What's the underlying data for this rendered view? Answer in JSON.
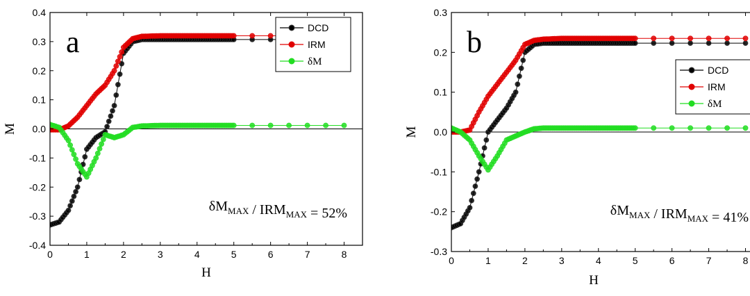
{
  "chart_data": [
    {
      "type": "scatter",
      "panel_label": "a",
      "xlabel": "H",
      "ylabel": "M",
      "xlim": [
        0,
        8.5
      ],
      "ylim": [
        -0.4,
        0.4
      ],
      "xticks": [
        "0",
        "1",
        "2",
        "3",
        "4",
        "5",
        "6",
        "7",
        "8"
      ],
      "yticks": [
        "-0.4",
        "-0.3",
        "-0.2",
        "-0.1",
        "0.0",
        "0.1",
        "0.2",
        "0.3",
        "0.4"
      ],
      "annotation": {
        "delta": "δM",
        "sub1": "MAX",
        "sep": " / IRM",
        "sub2": "MAX",
        "tail": " = 52%"
      },
      "legend_position": "top-right",
      "series": [
        {
          "name": "DCD",
          "color": "#000000",
          "x": [
            0,
            0.25,
            0.5,
            0.75,
            1.0,
            1.25,
            1.5,
            1.75,
            2.0,
            2.25,
            2.5,
            3.0,
            4.0,
            5.0,
            5.5,
            6.0,
            6.5,
            7.0,
            7.5,
            8.0
          ],
          "y": [
            -0.33,
            -0.32,
            -0.28,
            -0.2,
            -0.07,
            -0.03,
            -0.01,
            0.08,
            0.26,
            0.3,
            0.307,
            0.307,
            0.307,
            0.307,
            0.307,
            0.307,
            0.307,
            0.307,
            0.307,
            0.307
          ]
        },
        {
          "name": "IRM",
          "color": "#e00000",
          "x": [
            0,
            0.25,
            0.5,
            0.75,
            1.0,
            1.25,
            1.5,
            1.75,
            2.0,
            2.25,
            2.5,
            3.0,
            4.0,
            5.0,
            5.5,
            6.0,
            6.5,
            7.0,
            7.5,
            8.0
          ],
          "y": [
            -0.003,
            -0.003,
            0.01,
            0.04,
            0.08,
            0.12,
            0.15,
            0.2,
            0.28,
            0.31,
            0.318,
            0.32,
            0.32,
            0.32,
            0.32,
            0.32,
            0.32,
            0.32,
            0.32,
            0.32
          ]
        },
        {
          "name": "δM",
          "color": "#22dd22",
          "x": [
            0,
            0.25,
            0.5,
            0.75,
            1.0,
            1.25,
            1.5,
            1.75,
            2.0,
            2.25,
            2.5,
            3.0,
            4.0,
            5.0,
            5.5,
            6.0,
            6.5,
            7.0,
            7.5,
            8.0
          ],
          "y": [
            0.015,
            0.005,
            -0.04,
            -0.12,
            -0.165,
            -0.1,
            -0.02,
            -0.03,
            -0.02,
            0.005,
            0.01,
            0.012,
            0.012,
            0.012,
            0.012,
            0.012,
            0.012,
            0.012,
            0.012,
            0.012
          ]
        }
      ]
    },
    {
      "type": "scatter",
      "panel_label": "b",
      "xlabel": "H",
      "ylabel": "M",
      "xlim": [
        0,
        8.5
      ],
      "ylim": [
        -0.3,
        0.3
      ],
      "xticks": [
        "0",
        "1",
        "2",
        "3",
        "4",
        "5",
        "6",
        "7",
        "8"
      ],
      "yticks": [
        "-0.3",
        "-0.2",
        "-0.1",
        "0.0",
        "0.1",
        "0.2",
        "0.3"
      ],
      "annotation": {
        "delta": "δM",
        "sub1": "MAX",
        "sep": " / IRM",
        "sub2": "MAX",
        "tail": " = 41%"
      },
      "legend_position": "top-right",
      "series": [
        {
          "name": "DCD",
          "color": "#000000",
          "x": [
            0,
            0.25,
            0.5,
            0.75,
            1.0,
            1.25,
            1.5,
            1.75,
            2.0,
            2.25,
            2.5,
            3.0,
            4.0,
            5.0,
            5.5,
            6.0,
            6.5,
            7.0,
            7.5,
            8.0
          ],
          "y": [
            -0.24,
            -0.23,
            -0.19,
            -0.1,
            0.0,
            0.03,
            0.06,
            0.1,
            0.2,
            0.22,
            0.223,
            0.223,
            0.223,
            0.223,
            0.223,
            0.223,
            0.223,
            0.223,
            0.223,
            0.223
          ]
        },
        {
          "name": "IRM",
          "color": "#e00000",
          "x": [
            0,
            0.25,
            0.5,
            0.75,
            1.0,
            1.25,
            1.5,
            1.75,
            2.0,
            2.25,
            2.5,
            3.0,
            4.0,
            5.0,
            5.5,
            6.0,
            6.5,
            7.0,
            7.5,
            8.0
          ],
          "y": [
            0.0,
            0.0,
            0.005,
            0.05,
            0.09,
            0.12,
            0.15,
            0.18,
            0.22,
            0.23,
            0.233,
            0.235,
            0.235,
            0.235,
            0.235,
            0.235,
            0.235,
            0.235,
            0.235,
            0.235
          ]
        },
        {
          "name": "δM",
          "color": "#22dd22",
          "x": [
            0,
            0.25,
            0.5,
            0.75,
            1.0,
            1.25,
            1.5,
            1.75,
            2.0,
            2.25,
            2.5,
            3.0,
            4.0,
            5.0,
            5.5,
            6.0,
            6.5,
            7.0,
            7.5,
            8.0
          ],
          "y": [
            0.01,
            0.0,
            -0.02,
            -0.06,
            -0.095,
            -0.06,
            -0.02,
            -0.01,
            0.0,
            0.008,
            0.01,
            0.01,
            0.01,
            0.01,
            0.01,
            0.01,
            0.01,
            0.01,
            0.01,
            0.01
          ]
        }
      ]
    }
  ]
}
